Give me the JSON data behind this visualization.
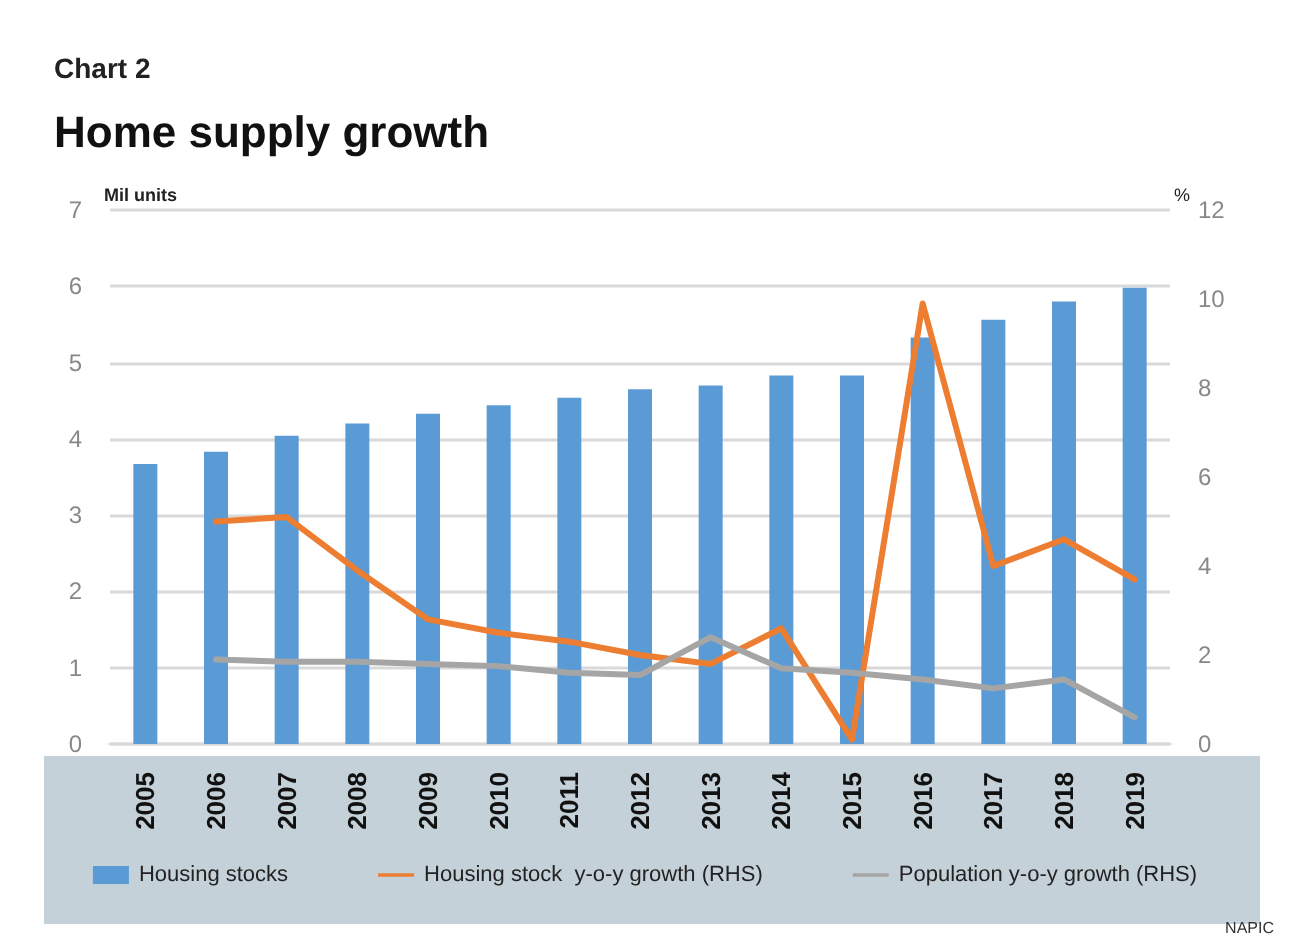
{
  "chart_data": {
    "type": "bar",
    "subtitle": "Chart 2",
    "title": "Home supply growth",
    "ylabel": "Mil units",
    "y2label": "%",
    "categories": [
      "2005",
      "2006",
      "2007",
      "2008",
      "2009",
      "2010",
      "2011",
      "2012",
      "2013",
      "2014",
      "2015",
      "2016",
      "2017",
      "2018",
      "2019"
    ],
    "series": [
      {
        "name": "Housing stocks",
        "color": "#5b9bd5",
        "values": [
          3.67,
          3.83,
          4.04,
          4.2,
          4.33,
          4.44,
          4.54,
          4.65,
          4.7,
          4.83,
          4.83,
          5.33,
          5.56,
          5.8,
          5.98
        ]
      },
      {
        "name": "Housing stock  y-o-y growth (RHS)",
        "type": "line",
        "axis": "y2",
        "color": "#ed7d31",
        "values": [
          null,
          5.0,
          5.1,
          3.9,
          2.8,
          2.5,
          2.3,
          2.0,
          1.8,
          2.6,
          0.1,
          9.9,
          4.0,
          4.6,
          3.7
        ]
      },
      {
        "name": "Population y-o-y growth (RHS)",
        "type": "line",
        "axis": "y2",
        "color": "#a5a5a5",
        "values": [
          null,
          1.9,
          1.85,
          1.85,
          1.8,
          1.75,
          1.6,
          1.55,
          2.4,
          1.7,
          1.6,
          1.45,
          1.25,
          1.45,
          0.6
        ]
      }
    ],
    "ylim": [
      0,
      7
    ],
    "yticks": [
      0,
      1,
      2,
      3,
      4,
      5,
      6,
      7
    ],
    "y2lim": [
      0,
      12
    ],
    "y2ticks": [
      0,
      2,
      4,
      6,
      8,
      10,
      12
    ],
    "grid": "y",
    "legend": "bottom",
    "marker": "none",
    "line_style": "solid",
    "annotations": [
      "NAPIC"
    ]
  }
}
